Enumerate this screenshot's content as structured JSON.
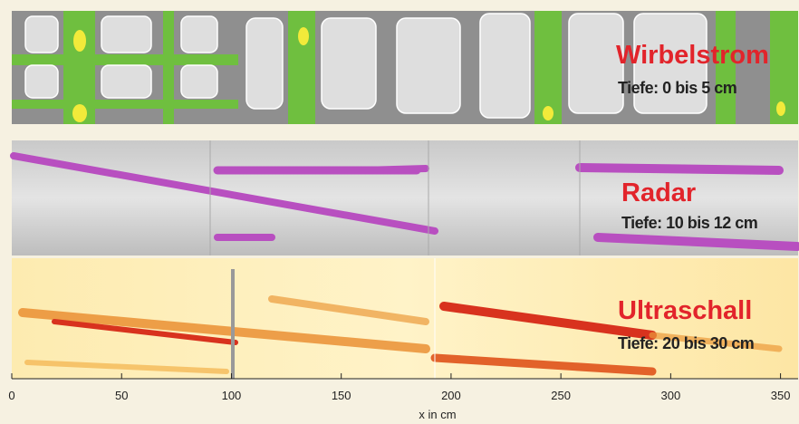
{
  "panels": [
    {
      "title": "Wirbelstrom",
      "subtitle": "Tiefe: 0 bis 5 cm"
    },
    {
      "title": "Radar",
      "subtitle": "Tiefe: 10 bis 12 cm"
    },
    {
      "title": "Ultraschall",
      "subtitle": "Tiefe: 20 bis 30 cm"
    }
  ],
  "x_axis": {
    "label": "x in cm",
    "xlim": [
      0,
      358
    ],
    "xticks": [
      0,
      50,
      100,
      150,
      200,
      250,
      300,
      350
    ]
  }
}
